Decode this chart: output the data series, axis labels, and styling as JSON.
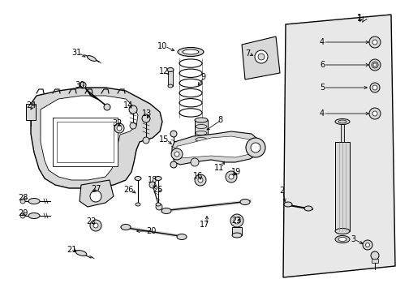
{
  "bg_color": "#ffffff",
  "lc": "#000000",
  "figsize": [
    4.89,
    3.6
  ],
  "dpi": 100,
  "card_fill": "#e8e8e8",
  "part_fill": "#ffffff",
  "metal_fill": "#d8d8d8"
}
